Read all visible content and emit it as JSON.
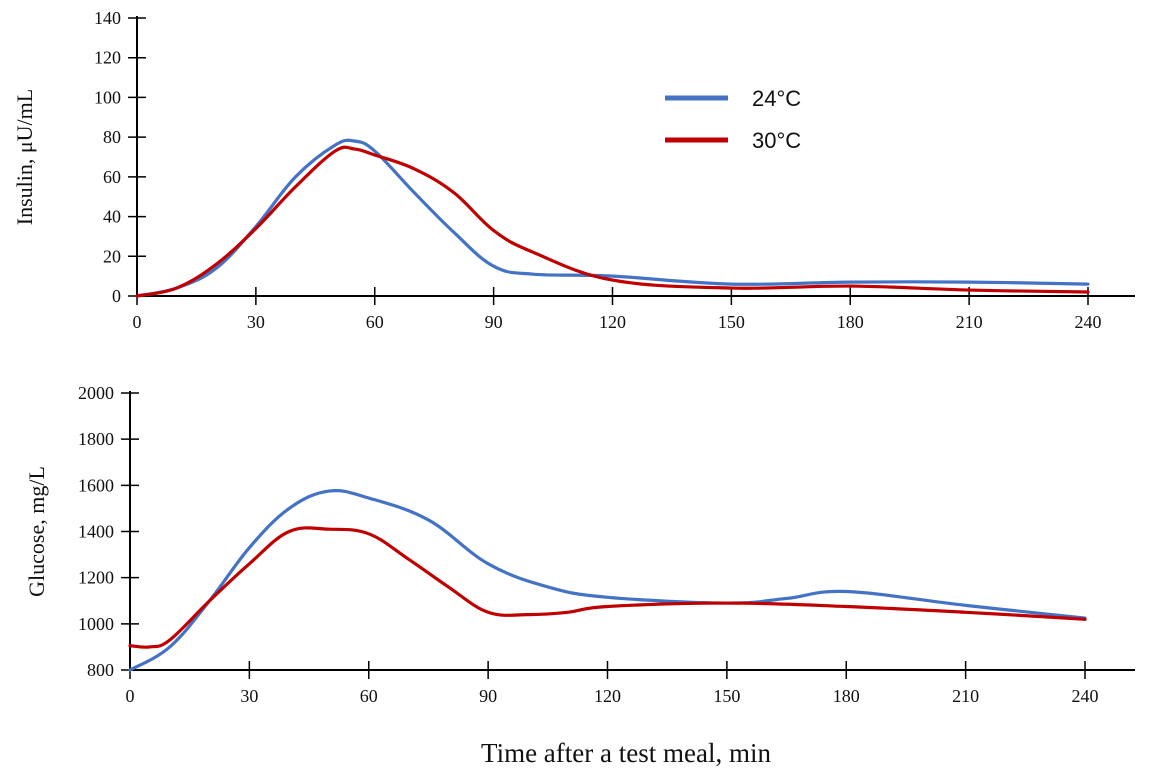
{
  "chart_data": [
    {
      "type": "line",
      "xlabel": "",
      "ylabel": "Insulin,  μU/mL",
      "x_ticks": [
        0,
        30,
        60,
        90,
        120,
        150,
        180,
        210,
        240
      ],
      "y_ticks": [
        0,
        20,
        40,
        60,
        80,
        100,
        120,
        140
      ],
      "xlim": [
        0,
        240
      ],
      "ylim": [
        0,
        140
      ],
      "legend_position": "top-center",
      "series": [
        {
          "name": "24°C",
          "color": "#4472C4",
          "x": [
            0,
            10,
            20,
            30,
            40,
            50,
            55,
            60,
            70,
            80,
            90,
            100,
            120,
            150,
            180,
            210,
            240
          ],
          "y": [
            0,
            4,
            14,
            35,
            60,
            76,
            78,
            73,
            52,
            32,
            15,
            11,
            10,
            6,
            7,
            7,
            6
          ]
        },
        {
          "name": "30°C",
          "color": "#C00000",
          "x": [
            0,
            10,
            20,
            30,
            40,
            50,
            55,
            60,
            70,
            80,
            90,
            100,
            120,
            150,
            180,
            210,
            240
          ],
          "y": [
            0,
            4,
            16,
            34,
            55,
            73,
            74,
            71,
            64,
            52,
            33,
            22,
            8,
            4,
            5,
            3,
            2
          ]
        }
      ]
    },
    {
      "type": "line",
      "xlabel": "Time after a test meal, min",
      "ylabel": "Glucose,  mg/L",
      "x_ticks": [
        0,
        30,
        60,
        90,
        120,
        150,
        180,
        210,
        240
      ],
      "y_ticks": [
        800,
        1000,
        1200,
        1400,
        1600,
        1800,
        2000
      ],
      "xlim": [
        0,
        240
      ],
      "ylim": [
        800,
        2000
      ],
      "series": [
        {
          "name": "24°C",
          "color": "#4472C4",
          "x": [
            0,
            10,
            20,
            30,
            40,
            50,
            60,
            75,
            90,
            105,
            120,
            150,
            165,
            180,
            210,
            240
          ],
          "y": [
            800,
            900,
            1100,
            1330,
            1500,
            1575,
            1545,
            1450,
            1260,
            1160,
            1115,
            1090,
            1110,
            1140,
            1080,
            1025
          ]
        },
        {
          "name": "30°C",
          "color": "#C00000",
          "x": [
            0,
            5,
            10,
            20,
            30,
            40,
            50,
            60,
            70,
            80,
            90,
            100,
            110,
            120,
            150,
            180,
            210,
            240
          ],
          "y": [
            905,
            900,
            930,
            1100,
            1260,
            1400,
            1410,
            1390,
            1280,
            1160,
            1050,
            1040,
            1050,
            1075,
            1090,
            1075,
            1050,
            1020
          ]
        }
      ]
    }
  ]
}
